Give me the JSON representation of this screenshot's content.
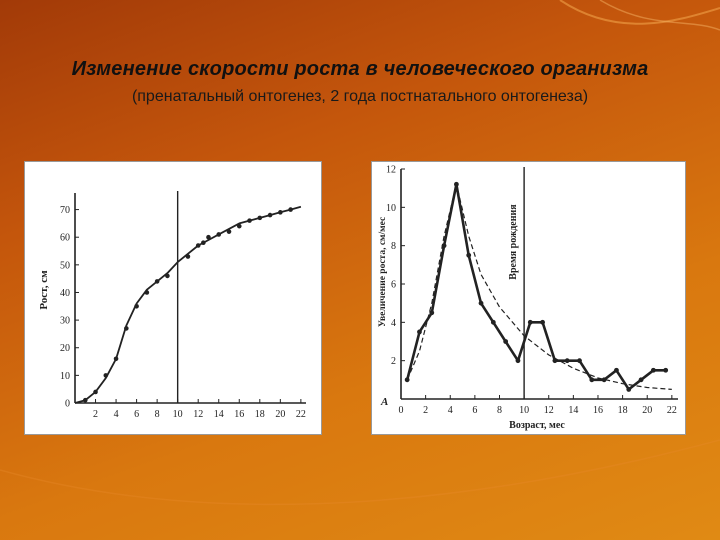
{
  "slide": {
    "title": "Изменение скорости роста в человеческого организма",
    "subtitle": "(пренатальный онтогенез, 2 года постнатального онтогенеза)"
  },
  "colors": {
    "ink": "#222222",
    "background": "#c4560c"
  },
  "chart_data": [
    {
      "type": "line",
      "ylabel": "Рост, см",
      "xticks": [
        2,
        4,
        6,
        8,
        10,
        12,
        14,
        16,
        18,
        20,
        22
      ],
      "xtick_labels": [
        "2",
        "4",
        "6",
        "8",
        "10",
        "12",
        "14",
        "16",
        "18",
        "20",
        "22"
      ],
      "yticks": [
        0,
        10,
        20,
        30,
        40,
        50,
        60,
        70
      ],
      "ytick_labels": [
        "0",
        "10",
        "20",
        "30",
        "40",
        "50",
        "60",
        "70"
      ],
      "xlim": [
        0,
        22.5
      ],
      "ylim": [
        0,
        76
      ],
      "vline_x": 10,
      "grid": false,
      "series": [
        {
          "style": "curve",
          "x": [
            0,
            1,
            2,
            3,
            4,
            5,
            6,
            7,
            8,
            9,
            10,
            11,
            12,
            13,
            14,
            15,
            16,
            17,
            18,
            19,
            20,
            21,
            22
          ],
          "values": [
            0,
            1,
            4,
            9,
            16,
            28,
            36,
            41,
            44,
            47,
            51,
            54,
            57,
            59,
            61,
            63,
            65,
            66,
            67,
            68,
            69,
            70,
            71
          ]
        },
        {
          "style": "points",
          "x": [
            1,
            2,
            3,
            4,
            5,
            6,
            7,
            8,
            9,
            11,
            12,
            12.5,
            13,
            14,
            15,
            16,
            17,
            18,
            19,
            20,
            21
          ],
          "values": [
            1,
            4,
            10,
            16,
            27,
            35,
            40,
            44,
            46,
            53,
            57,
            58,
            60,
            61,
            62,
            64,
            66,
            67,
            68,
            69,
            70
          ]
        }
      ]
    },
    {
      "type": "line",
      "ylabel": "Увеличение роста, см/мес",
      "xlabel": "Возраст, мес",
      "vline_label": "Время рождения",
      "corner_label": "А",
      "xticks": [
        0,
        2,
        4,
        6,
        8,
        10,
        12,
        14,
        16,
        18,
        20,
        22
      ],
      "xtick_labels": [
        "0",
        "2",
        "4",
        "6",
        "8",
        "10",
        "12",
        "14",
        "16",
        "18",
        "20",
        "22"
      ],
      "yticks": [
        2,
        4,
        6,
        8,
        10,
        12
      ],
      "ytick_labels": [
        "2",
        "4",
        "6",
        "8",
        "10",
        "12"
      ],
      "xlim": [
        0,
        22.5
      ],
      "ylim": [
        0,
        12
      ],
      "vline_x": 10,
      "grid": false,
      "series": [
        {
          "style": "solid",
          "x": [
            0.5,
            1.5,
            2.5,
            3.5,
            4.5,
            5.5,
            6.5,
            7.5,
            8.5,
            9.5,
            10.5,
            11.5,
            12.5,
            13.5,
            14.5,
            15.5,
            16.5,
            17.5,
            18.5,
            19.5,
            20.5,
            21.5
          ],
          "values": [
            1,
            3.5,
            4.5,
            8,
            11.2,
            7.5,
            5,
            4,
            3,
            2,
            4,
            4,
            2,
            2,
            2,
            1,
            1,
            1.5,
            0.5,
            1,
            1.5,
            1.5
          ]
        },
        {
          "style": "dashed",
          "x": [
            0.5,
            1.5,
            2.5,
            3.5,
            4.5,
            5.5,
            6.5,
            8,
            10,
            12,
            14,
            16,
            18,
            20,
            22
          ],
          "values": [
            1,
            2.5,
            5,
            8.5,
            11.2,
            8.5,
            6.5,
            4.8,
            3.3,
            2.3,
            1.6,
            1.1,
            0.8,
            0.6,
            0.5
          ]
        }
      ]
    }
  ]
}
